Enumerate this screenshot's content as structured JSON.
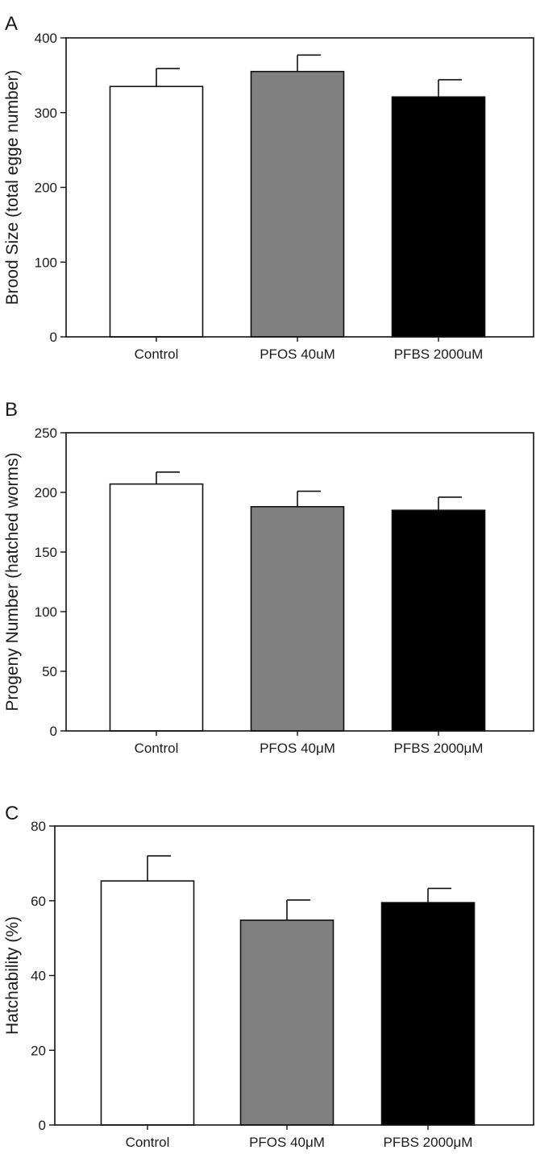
{
  "figure": {
    "background": "#ffffff"
  },
  "chart_data": [
    {
      "type": "bar",
      "panel": "A",
      "categories": [
        "Control",
        "PFOS 40uM",
        "PFBS 2000uM"
      ],
      "values": [
        335,
        355,
        321
      ],
      "errors": [
        24,
        22,
        23
      ],
      "ylabel": "Brood Size (total egge number)",
      "ylim": [
        0,
        400
      ],
      "yticks": [
        0,
        100,
        200,
        300,
        400
      ],
      "grid": false,
      "bar_colors": [
        "#ffffff",
        "#808080",
        "#000000"
      ]
    },
    {
      "type": "bar",
      "panel": "B",
      "categories": [
        "Control",
        "PFOS 40μM",
        "PFBS 2000μM"
      ],
      "values": [
        207,
        188,
        185
      ],
      "errors": [
        10,
        13,
        11
      ],
      "ylabel": "Progeny Number (hatched worms)",
      "ylim": [
        0,
        250
      ],
      "yticks": [
        0,
        50,
        100,
        150,
        200,
        250
      ],
      "grid": false,
      "bar_colors": [
        "#ffffff",
        "#808080",
        "#000000"
      ]
    },
    {
      "type": "bar",
      "panel": "C",
      "categories": [
        "Control",
        "PFOS 40μM",
        "PFBS 2000μM"
      ],
      "values": [
        65.3,
        54.8,
        59.5
      ],
      "errors": [
        6.7,
        5.4,
        3.8
      ],
      "ylabel": "Hatchability (%)",
      "ylim": [
        0,
        80
      ],
      "yticks": [
        0,
        20,
        40,
        60,
        80
      ],
      "grid": false,
      "bar_colors": [
        "#ffffff",
        "#808080",
        "#000000"
      ]
    }
  ]
}
